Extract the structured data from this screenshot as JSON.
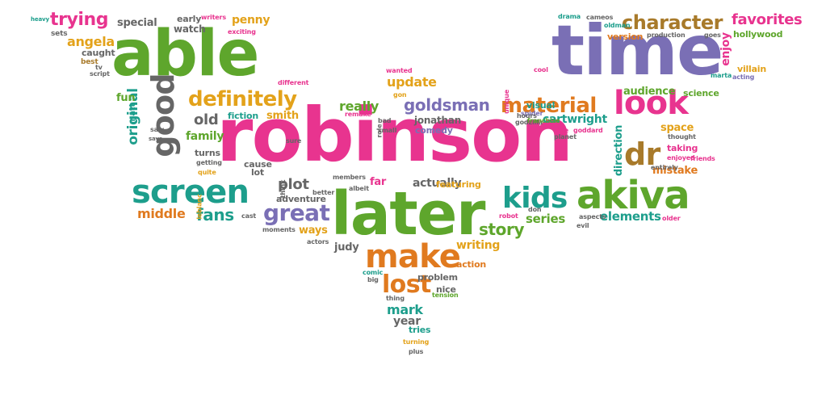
{
  "palette": {
    "pink": "#e8348f",
    "green": "#5ea62c",
    "purple": "#7a6fb5",
    "orange": "#e07a1f",
    "teal": "#1d9e8c",
    "gold": "#e3a21a",
    "brown": "#a87a2a",
    "gray": "#666666"
  },
  "words": [
    {
      "text": "robinson",
      "color": "pink"
    },
    {
      "text": "later",
      "color": "green"
    },
    {
      "text": "able",
      "color": "green"
    },
    {
      "text": "time",
      "color": "purple"
    },
    {
      "text": "akiva",
      "color": "green"
    },
    {
      "text": "make",
      "color": "orange"
    },
    {
      "text": "screen",
      "color": "teal"
    },
    {
      "text": "look",
      "color": "pink"
    },
    {
      "text": "good",
      "color": "gray"
    },
    {
      "text": "dr",
      "color": "brown"
    },
    {
      "text": "kids",
      "color": "teal"
    },
    {
      "text": "character",
      "color": "brown"
    },
    {
      "text": "definitely",
      "color": "gold"
    },
    {
      "text": "material",
      "color": "orange"
    },
    {
      "text": "great",
      "color": "purple"
    },
    {
      "text": "lost",
      "color": "orange"
    },
    {
      "text": "trying",
      "color": "pink"
    },
    {
      "text": "favorites",
      "color": "pink"
    },
    {
      "text": "original",
      "color": "teal"
    },
    {
      "text": "goldsman",
      "color": "purple"
    },
    {
      "text": "fans",
      "color": "teal"
    },
    {
      "text": "story",
      "color": "green"
    },
    {
      "text": "plot",
      "color": "gray"
    },
    {
      "text": "old",
      "color": "gray"
    },
    {
      "text": "angela",
      "color": "gold"
    },
    {
      "text": "really",
      "color": "green"
    },
    {
      "text": "update",
      "color": "gold"
    },
    {
      "text": "middle",
      "color": "orange"
    },
    {
      "text": "elements",
      "color": "teal"
    },
    {
      "text": "series",
      "color": "green"
    },
    {
      "text": "mark",
      "color": "teal"
    },
    {
      "text": "writing",
      "color": "gold"
    },
    {
      "text": "enjoy",
      "color": "pink"
    },
    {
      "text": "family",
      "color": "green"
    },
    {
      "text": "penny",
      "color": "gold"
    },
    {
      "text": "cartwright",
      "color": "teal"
    },
    {
      "text": "year",
      "color": "gray"
    },
    {
      "text": "actually",
      "color": "gray"
    },
    {
      "text": "special",
      "color": "gray"
    },
    {
      "text": "audience",
      "color": "green"
    },
    {
      "text": "space",
      "color": "gold"
    },
    {
      "text": "mistake",
      "color": "orange"
    },
    {
      "text": "direction",
      "color": "teal"
    },
    {
      "text": "judy",
      "color": "gray"
    },
    {
      "text": "far",
      "color": "pink"
    },
    {
      "text": "ways",
      "color": "gold"
    },
    {
      "text": "fun",
      "color": "green"
    },
    {
      "text": "smith",
      "color": "gold"
    },
    {
      "text": "jonathan",
      "color": "gray"
    },
    {
      "text": "version",
      "color": "orange"
    },
    {
      "text": "villain",
      "color": "gold"
    },
    {
      "text": "hollywood",
      "color": "green"
    },
    {
      "text": "watch",
      "color": "gray"
    },
    {
      "text": "early",
      "color": "gray"
    },
    {
      "text": "caught",
      "color": "gray"
    },
    {
      "text": "fiction",
      "color": "teal"
    },
    {
      "text": "cause",
      "color": "gray"
    },
    {
      "text": "lot",
      "color": "gray"
    },
    {
      "text": "turns",
      "color": "gray"
    },
    {
      "text": "comedy",
      "color": "purple"
    },
    {
      "text": "featuring",
      "color": "gold"
    },
    {
      "text": "visual",
      "color": "teal"
    },
    {
      "text": "science",
      "color": "green"
    },
    {
      "text": "taking",
      "color": "pink"
    },
    {
      "text": "adventure",
      "color": "gray"
    },
    {
      "text": "problem",
      "color": "gray"
    },
    {
      "text": "action",
      "color": "orange"
    },
    {
      "text": "nice",
      "color": "gray"
    },
    {
      "text": "tries",
      "color": "teal"
    },
    {
      "text": "matt",
      "color": "teal"
    },
    {
      "text": "best",
      "color": "brown"
    },
    {
      "text": "sets",
      "color": "gray"
    },
    {
      "text": "tv",
      "color": "gray"
    },
    {
      "text": "script",
      "color": "gray"
    },
    {
      "text": "writers",
      "color": "pink"
    },
    {
      "text": "exciting",
      "color": "pink"
    },
    {
      "text": "different",
      "color": "pink"
    },
    {
      "text": "wanted",
      "color": "pink"
    },
    {
      "text": "gon",
      "color": "gold"
    },
    {
      "text": "cool",
      "color": "pink"
    },
    {
      "text": "spider",
      "color": "purple"
    },
    {
      "text": "godzilla",
      "color": "gray"
    },
    {
      "text": "goddard",
      "color": "pink"
    },
    {
      "text": "thought",
      "color": "gray"
    },
    {
      "text": "enjoyed",
      "color": "pink"
    },
    {
      "text": "entirely",
      "color": "gray"
    },
    {
      "text": "drama",
      "color": "teal"
    },
    {
      "text": "cameos",
      "color": "gray"
    },
    {
      "text": "oldman",
      "color": "teal"
    },
    {
      "text": "production",
      "color": "gray"
    },
    {
      "text": "goes",
      "color": "gray"
    },
    {
      "text": "marta",
      "color": "teal"
    },
    {
      "text": "acting",
      "color": "purple"
    },
    {
      "text": "getting",
      "color": "gray"
    },
    {
      "text": "quite",
      "color": "gold"
    },
    {
      "text": "leblanc",
      "color": "gold"
    },
    {
      "text": "cast",
      "color": "gray"
    },
    {
      "text": "moments",
      "color": "gray"
    },
    {
      "text": "actors",
      "color": "gray"
    },
    {
      "text": "better",
      "color": "gray"
    },
    {
      "text": "albeit",
      "color": "gray"
    },
    {
      "text": "members",
      "color": "gray"
    },
    {
      "text": "think",
      "color": "gray"
    },
    {
      "text": "sure",
      "color": "gray"
    },
    {
      "text": "small",
      "color": "gray"
    },
    {
      "text": "bad",
      "color": "gray"
    },
    {
      "text": "remake",
      "color": "pink"
    },
    {
      "text": "role",
      "color": "gray"
    },
    {
      "text": "robot",
      "color": "pink"
    },
    {
      "text": "planet",
      "color": "gray"
    },
    {
      "text": "aspects",
      "color": "gray"
    },
    {
      "text": "evil",
      "color": "gray"
    },
    {
      "text": "older",
      "color": "pink"
    },
    {
      "text": "comic",
      "color": "teal"
    },
    {
      "text": "big",
      "color": "gray"
    },
    {
      "text": "thing",
      "color": "gray"
    },
    {
      "text": "tension",
      "color": "green"
    },
    {
      "text": "turning",
      "color": "gold"
    },
    {
      "text": "plus",
      "color": "gray"
    },
    {
      "text": "don",
      "color": "gray"
    },
    {
      "text": "franchise",
      "color": "green"
    },
    {
      "text": "unique",
      "color": "pink"
    },
    {
      "text": "saw",
      "color": "gray"
    },
    {
      "text": "heavy",
      "color": "teal"
    },
    {
      "text": "says",
      "color": "gray"
    },
    {
      "text": "friends",
      "color": "pink"
    },
    {
      "text": "hours",
      "color": "gray"
    },
    {
      "text": "line",
      "color": "pink"
    }
  ]
}
